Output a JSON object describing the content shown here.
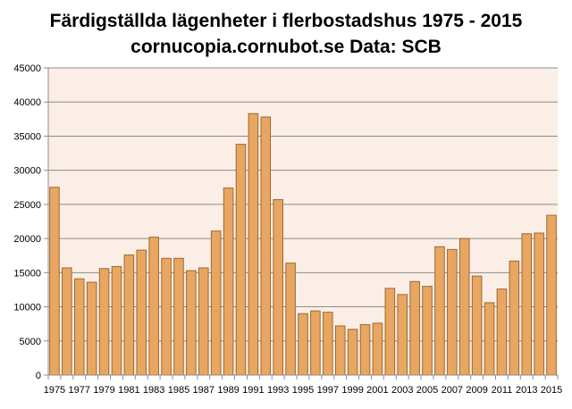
{
  "chart_data": {
    "type": "bar",
    "title": "Färdigställda lägenheter i flerbostadshus 1975 - 2015",
    "subtitle": "cornucopia.cornubot.se Data: SCB",
    "xlabel": "",
    "ylabel": "",
    "ylim": [
      0,
      45000
    ],
    "y_ticks": [
      "0",
      "5000",
      "10000",
      "15000",
      "20000",
      "25000",
      "30000",
      "35000",
      "40000",
      "45000"
    ],
    "grid": "horizontal",
    "legend": "none",
    "categories": [
      "1975",
      "1976",
      "1977",
      "1978",
      "1979",
      "1980",
      "1981",
      "1982",
      "1983",
      "1984",
      "1985",
      "1986",
      "1987",
      "1988",
      "1989",
      "1990",
      "1991",
      "1992",
      "1993",
      "1994",
      "1995",
      "1996",
      "1997",
      "1998",
      "1999",
      "2000",
      "2001",
      "2002",
      "2003",
      "2004",
      "2005",
      "2006",
      "2007",
      "2008",
      "2009",
      "2010",
      "2011",
      "2012",
      "2013",
      "2014",
      "2015"
    ],
    "x_tick_labels": [
      "1975",
      "",
      "1977",
      "",
      "1979",
      "",
      "1981",
      "",
      "1983",
      "",
      "1985",
      "",
      "1987",
      "",
      "1989",
      "",
      "1991",
      "",
      "1993",
      "",
      "1995",
      "",
      "1997",
      "",
      "1999",
      "",
      "2001",
      "",
      "2003",
      "",
      "2005",
      "",
      "2007",
      "",
      "2009",
      "",
      "2011",
      "",
      "2013",
      "",
      "2015"
    ],
    "values": [
      27500,
      15700,
      14100,
      13600,
      15600,
      15900,
      17600,
      18300,
      20200,
      17100,
      17100,
      15300,
      15700,
      21100,
      27400,
      33800,
      38300,
      37800,
      25700,
      16400,
      9000,
      9400,
      9200,
      7200,
      6700,
      7400,
      7600,
      12700,
      11800,
      13700,
      13000,
      18800,
      18400,
      20000,
      14500,
      10600,
      12600,
      16700,
      20700,
      20800,
      23400
    ],
    "colors": {
      "bar_fill": "#e8a660",
      "bar_stroke": "#9b6a35",
      "plot_background": "#fbeee6",
      "gridline": "#8c8c8c",
      "axis": "#8c8c8c",
      "page_background": "#ffffff"
    }
  }
}
